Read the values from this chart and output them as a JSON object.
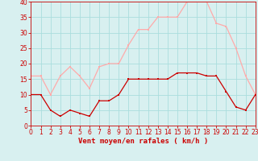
{
  "hours": [
    0,
    1,
    2,
    3,
    4,
    5,
    6,
    7,
    8,
    9,
    10,
    11,
    12,
    13,
    14,
    15,
    16,
    17,
    18,
    19,
    20,
    21,
    22,
    23
  ],
  "wind_mean": [
    10,
    10,
    5,
    3,
    5,
    4,
    3,
    8,
    8,
    10,
    15,
    15,
    15,
    15,
    15,
    17,
    17,
    17,
    16,
    16,
    11,
    6,
    5,
    10
  ],
  "wind_gust": [
    16,
    16,
    10,
    16,
    19,
    16,
    12,
    19,
    20,
    20,
    26,
    31,
    31,
    35,
    35,
    35,
    40,
    40,
    40,
    33,
    32,
    25,
    16,
    10
  ],
  "mean_color": "#cc0000",
  "gust_color": "#ffaaaa",
  "bg_color": "#d8f0f0",
  "grid_color": "#aadddd",
  "xlabel": "Vent moyen/en rafales ( km/h )",
  "ylim": [
    0,
    40
  ],
  "xlim": [
    0,
    23
  ],
  "yticks": [
    0,
    5,
    10,
    15,
    20,
    25,
    30,
    35,
    40
  ],
  "xticks": [
    0,
    1,
    2,
    3,
    4,
    5,
    6,
    7,
    8,
    9,
    10,
    11,
    12,
    13,
    14,
    15,
    16,
    17,
    18,
    19,
    20,
    21,
    22,
    23
  ],
  "tick_fontsize": 5.5,
  "xlabel_fontsize": 6.5
}
